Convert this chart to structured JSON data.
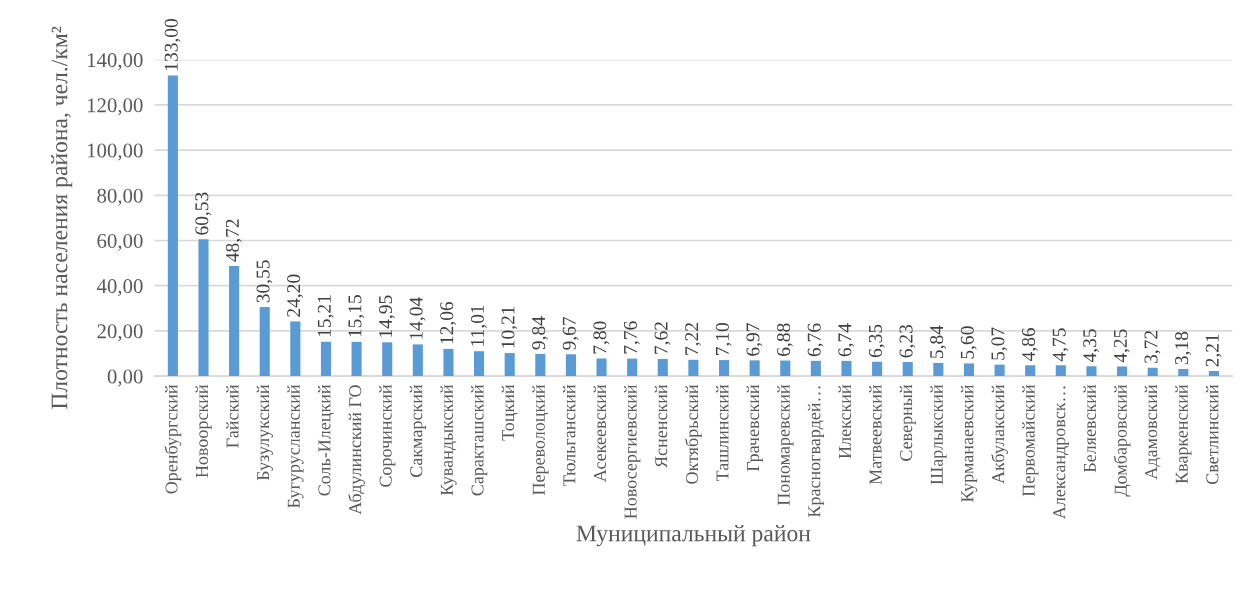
{
  "chart_data": {
    "type": "bar",
    "xlabel": "Муниципальный район",
    "ylabel": "Плотность населения района, чел./км²",
    "categories": [
      "Оренбургский",
      "Новоорский",
      "Гайский",
      "Бузулукский",
      "Бугурусланский",
      "Соль-Илецкий",
      "Абдулинский ГО",
      "Сорочинский",
      "Сакмарский",
      "Кувандыкский",
      "Саракташский",
      "Тоцкий",
      "Переволоцкий",
      "Тюльганский",
      "Асекеевский",
      "Новосергиевский",
      "Ясненский",
      "Октябрьский",
      "Ташлинский",
      "Грачевский",
      "Пономаревский",
      "Красногвардей…",
      "Илекский",
      "Матвеевский",
      "Северный",
      "Шарлыкский",
      "Курманаевский",
      "Акбулакский",
      "Первомайский",
      "Александровск…",
      "Беляевский",
      "Домбаровский",
      "Адамовский",
      "Кваркенский",
      "Светлинский"
    ],
    "values": [
      133.0,
      60.53,
      48.72,
      30.55,
      24.2,
      15.21,
      15.15,
      14.95,
      14.04,
      12.06,
      11.01,
      10.21,
      9.84,
      9.67,
      7.8,
      7.76,
      7.62,
      7.22,
      7.1,
      6.97,
      6.88,
      6.76,
      6.74,
      6.35,
      6.23,
      5.84,
      5.6,
      5.07,
      4.86,
      4.75,
      4.35,
      4.25,
      3.72,
      3.18,
      2.21
    ],
    "value_labels": [
      "133,00",
      "60,53",
      "48,72",
      "30,55",
      "24,20",
      "15,21",
      "15,15",
      "14,95",
      "14,04",
      "12,06",
      "11,01",
      "10,21",
      "9,84",
      "9,67",
      "7,80",
      "7,76",
      "7,62",
      "7,22",
      "7,10",
      "6,97",
      "6,88",
      "6,76",
      "6,74",
      "6,35",
      "6,23",
      "5,84",
      "5,60",
      "5,07",
      "4,86",
      "4,75",
      "4,35",
      "4,25",
      "3,72",
      "3,18",
      "2,21"
    ],
    "color": "#5b9bd5",
    "ylim": [
      0,
      140
    ],
    "yticks": [
      {
        "value": 0,
        "label": "0,00"
      },
      {
        "value": 20,
        "label": "20,00"
      },
      {
        "value": 40,
        "label": "40,00"
      },
      {
        "value": 60,
        "label": "60,00"
      },
      {
        "value": 80,
        "label": "80,00"
      },
      {
        "value": 100,
        "label": "100,00"
      },
      {
        "value": 120,
        "label": "120,00"
      },
      {
        "value": 140,
        "label": "140,00"
      }
    ],
    "grid": "y"
  }
}
